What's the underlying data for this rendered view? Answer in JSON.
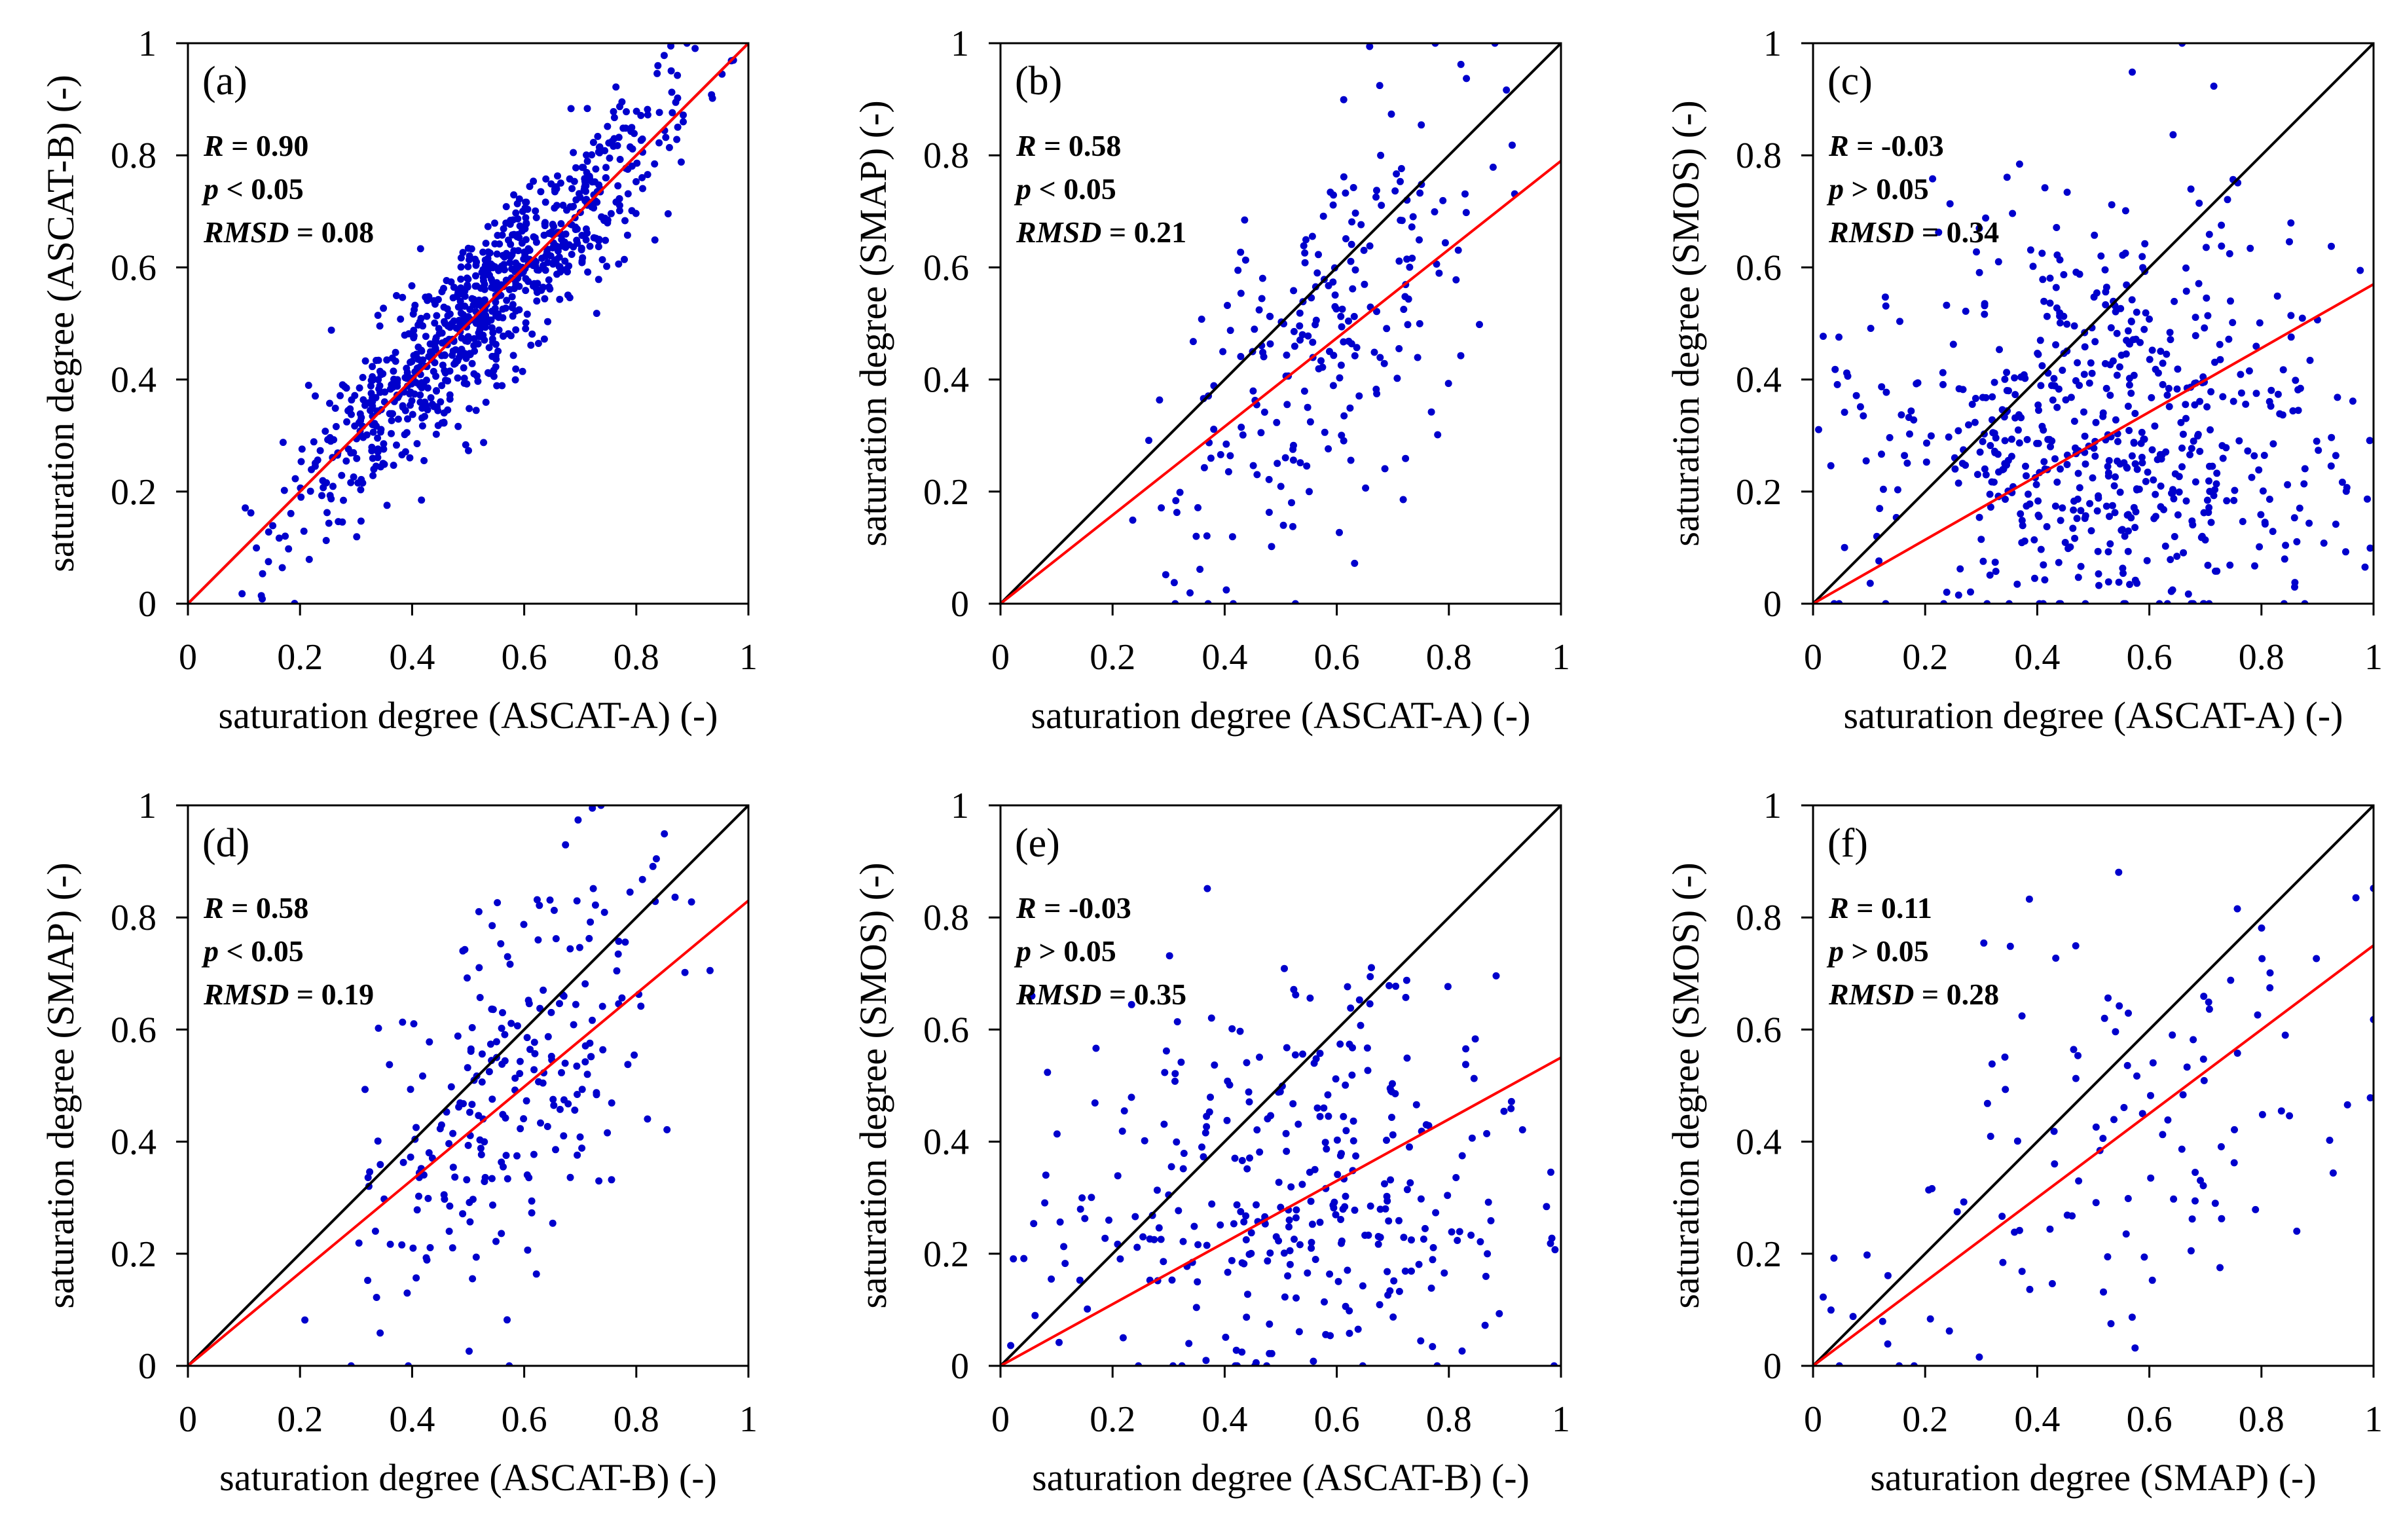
{
  "chart_data": [
    {
      "type": "scatter",
      "panel": "(a)",
      "xlabel": "saturation degree (ASCAT-A)  (-)",
      "ylabel": "saturation degree (ASCAT-B)  (-)",
      "xlim": [
        0,
        1
      ],
      "ylim": [
        0,
        1
      ],
      "xticks": [
        "0",
        "0.2",
        "0.4",
        "0.6",
        "0.8",
        "1"
      ],
      "yticks": [
        "0",
        "0.2",
        "0.4",
        "0.6",
        "0.8",
        "1"
      ],
      "stats": {
        "R": "0.90",
        "p": "0.05",
        "p_op": "<",
        "RMSD": "0.08"
      },
      "lines": [
        {
          "name": "1:1 line",
          "color": "#000000",
          "x": [
            0,
            1
          ],
          "y": [
            0,
            1
          ]
        },
        {
          "name": "regression",
          "color": "#ff0000",
          "x": [
            0,
            1
          ],
          "y": [
            0,
            1.0
          ]
        }
      ],
      "points": {
        "color": "#0000cc",
        "n": 900,
        "seed": 11,
        "slope": 1.0,
        "intercept": 0.0,
        "noise": 0.075,
        "xmin": 0.05,
        "xmax": 1.0,
        "mode": "corr"
      }
    },
    {
      "type": "scatter",
      "panel": "(b)",
      "xlabel": "saturation degree (ASCAT-A)  (-)",
      "ylabel": "saturation degree (SMAP)  (-)",
      "xlim": [
        0,
        1
      ],
      "ylim": [
        0,
        1
      ],
      "xticks": [
        "0",
        "0.2",
        "0.4",
        "0.6",
        "0.8",
        "1"
      ],
      "yticks": [
        "0",
        "0.2",
        "0.4",
        "0.6",
        "0.8",
        "1"
      ],
      "stats": {
        "R": "0.58",
        "p": "0.05",
        "p_op": "<",
        "RMSD": "0.21"
      },
      "lines": [
        {
          "name": "1:1 line",
          "color": "#000000",
          "x": [
            0,
            1
          ],
          "y": [
            0,
            1
          ]
        },
        {
          "name": "regression",
          "color": "#ff0000",
          "x": [
            0,
            1
          ],
          "y": [
            0,
            0.79
          ]
        }
      ],
      "points": {
        "color": "#0000cc",
        "n": 230,
        "seed": 23,
        "slope": 0.9,
        "intercept": -0.04,
        "noise": 0.17,
        "xmin": 0.15,
        "xmax": 1.0,
        "mode": "corr"
      }
    },
    {
      "type": "scatter",
      "panel": "(c)",
      "xlabel": "saturation degree (ASCAT-A)  (-)",
      "ylabel": "saturation degree (SMOS)  (-)",
      "xlim": [
        0,
        1
      ],
      "ylim": [
        0,
        1
      ],
      "xticks": [
        "0",
        "0.2",
        "0.4",
        "0.6",
        "0.8",
        "1"
      ],
      "yticks": [
        "0",
        "0.2",
        "0.4",
        "0.6",
        "0.8",
        "1"
      ],
      "stats": {
        "R": "-0.03",
        "p": "0.05",
        "p_op": ">",
        "RMSD": "0.34"
      },
      "lines": [
        {
          "name": "1:1 line",
          "color": "#000000",
          "x": [
            0,
            1
          ],
          "y": [
            0,
            1
          ]
        },
        {
          "name": "regression",
          "color": "#ff0000",
          "x": [
            0,
            1
          ],
          "y": [
            0,
            0.57
          ]
        }
      ],
      "points": {
        "color": "#0000cc",
        "n": 620,
        "seed": 37,
        "slope": 0.0,
        "intercept": 0.3,
        "noise": 0.22,
        "xmin": 0.0,
        "xmax": 1.0,
        "mode": "cloud"
      }
    },
    {
      "type": "scatter",
      "panel": "(d)",
      "xlabel": "saturation degree (ASCAT-B)  (-)",
      "ylabel": "saturation degree (SMAP)  (-)",
      "xlim": [
        0,
        1
      ],
      "ylim": [
        0,
        1
      ],
      "xticks": [
        "0",
        "0.2",
        "0.4",
        "0.6",
        "0.8",
        "1"
      ],
      "yticks": [
        "0",
        "0.2",
        "0.4",
        "0.6",
        "0.8",
        "1"
      ],
      "stats": {
        "R": "0.58",
        "p": "0.05",
        "p_op": "<",
        "RMSD": "0.19"
      },
      "lines": [
        {
          "name": "1:1 line",
          "color": "#000000",
          "x": [
            0,
            1
          ],
          "y": [
            0,
            1
          ]
        },
        {
          "name": "regression",
          "color": "#ff0000",
          "x": [
            0,
            1
          ],
          "y": [
            0,
            0.83
          ]
        }
      ],
      "points": {
        "color": "#0000cc",
        "n": 240,
        "seed": 41,
        "slope": 0.85,
        "intercept": 0.0,
        "noise": 0.16,
        "xmin": 0.15,
        "xmax": 1.0,
        "mode": "corr"
      }
    },
    {
      "type": "scatter",
      "panel": "(e)",
      "xlabel": "saturation degree (ASCAT-B)  (-)",
      "ylabel": "saturation degree (SMOS)  (-)",
      "xlim": [
        0,
        1
      ],
      "ylim": [
        0,
        1
      ],
      "xticks": [
        "0",
        "0.2",
        "0.4",
        "0.6",
        "0.8",
        "1"
      ],
      "yticks": [
        "0",
        "0.2",
        "0.4",
        "0.6",
        "0.8",
        "1"
      ],
      "stats": {
        "R": "-0.03",
        "p": "0.05",
        "p_op": ">",
        "RMSD": "0.35"
      },
      "lines": [
        {
          "name": "1:1 line",
          "color": "#000000",
          "x": [
            0,
            1
          ],
          "y": [
            0,
            1
          ]
        },
        {
          "name": "regression",
          "color": "#ff0000",
          "x": [
            0,
            1
          ],
          "y": [
            0,
            0.55
          ]
        }
      ],
      "points": {
        "color": "#0000cc",
        "n": 330,
        "seed": 53,
        "slope": 0.0,
        "intercept": 0.3,
        "noise": 0.22,
        "xmin": 0.0,
        "xmax": 1.0,
        "mode": "cloud"
      }
    },
    {
      "type": "scatter",
      "panel": "(f)",
      "xlabel": "saturation degree (SMAP)  (-)",
      "ylabel": "saturation degree (SMOS)  (-)",
      "xlim": [
        0,
        1
      ],
      "ylim": [
        0,
        1
      ],
      "xticks": [
        "0",
        "0.2",
        "0.4",
        "0.6",
        "0.8",
        "1"
      ],
      "yticks": [
        "0",
        "0.2",
        "0.4",
        "0.6",
        "0.8",
        "1"
      ],
      "stats": {
        "R": "0.11",
        "p": "0.05",
        "p_op": ">",
        "RMSD": "0.28"
      },
      "lines": [
        {
          "name": "1:1 line",
          "color": "#000000",
          "x": [
            0,
            1
          ],
          "y": [
            0,
            1
          ]
        },
        {
          "name": "regression",
          "color": "#ff0000",
          "x": [
            0,
            1
          ],
          "y": [
            0,
            0.75
          ]
        }
      ],
      "points": {
        "color": "#0000cc",
        "n": 120,
        "seed": 67,
        "slope": 0.3,
        "intercept": 0.2,
        "noise": 0.2,
        "xmin": 0.05,
        "xmax": 1.0,
        "mode": "cloud"
      }
    }
  ]
}
